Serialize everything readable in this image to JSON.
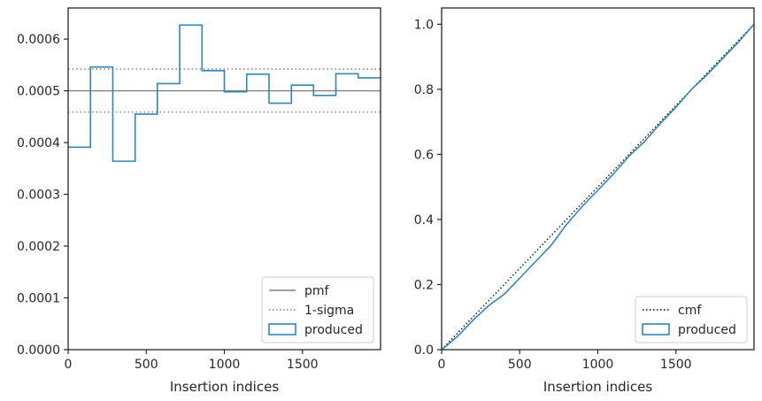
{
  "chart_data": [
    {
      "type": "line",
      "xlabel": "Insertion indices",
      "ylabel": "",
      "xlim": [
        0,
        2000
      ],
      "ylim": [
        0,
        0.00066
      ],
      "xticks": [
        0,
        500,
        1000,
        1500
      ],
      "xtick_labels": [
        "0",
        "500",
        "1000",
        "1500"
      ],
      "yticks": [
        0,
        0.0001,
        0.0002,
        0.0003,
        0.0004,
        0.0005,
        0.0006
      ],
      "ytick_labels": [
        "0.0000",
        "0.0001",
        "0.0002",
        "0.0003",
        "0.0004",
        "0.0005",
        "0.0006"
      ],
      "grid": false,
      "legend_position": "bottom-right",
      "reference_lines": [
        {
          "name": "pmf",
          "y": 0.0005,
          "color": "#808080",
          "style": "solid"
        },
        {
          "name": "1-sigma",
          "y": 0.000542,
          "color": "#808080",
          "style": "dotted"
        },
        {
          "name": "1-sigma",
          "y": 0.000459,
          "color": "#808080",
          "style": "dotted"
        }
      ],
      "series": [
        {
          "name": "produced",
          "kind": "step-histogram",
          "color": "#2e86c1",
          "bin_edges": [
            0,
            143,
            286,
            429,
            571,
            714,
            857,
            1000,
            1143,
            1286,
            1429,
            1571,
            1714,
            1857,
            2000
          ],
          "values": [
            0.000391,
            0.000546,
            0.000364,
            0.000455,
            0.000514,
            0.000627,
            0.000539,
            0.000498,
            0.000532,
            0.000476,
            0.000511,
            0.000491,
            0.000533,
            0.000525
          ]
        }
      ],
      "legend": [
        "pmf",
        "1-sigma",
        "produced"
      ]
    },
    {
      "type": "line",
      "xlabel": "Insertion indices",
      "ylabel": "",
      "xlim": [
        0,
        2000
      ],
      "ylim": [
        0,
        1.05
      ],
      "xticks": [
        0,
        500,
        1000,
        1500
      ],
      "xtick_labels": [
        "0",
        "500",
        "1000",
        "1500"
      ],
      "yticks": [
        0,
        0.2,
        0.4,
        0.6,
        0.8,
        1.0
      ],
      "ytick_labels": [
        "0.0",
        "0.2",
        "0.4",
        "0.6",
        "0.8",
        "1.0"
      ],
      "grid": false,
      "legend_position": "bottom-right",
      "series": [
        {
          "name": "cmf",
          "color": "#000000",
          "style": "dotted",
          "x": [
            0,
            2000
          ],
          "y": [
            0,
            1.0
          ]
        },
        {
          "name": "produced",
          "color": "#2e86c1",
          "style": "solid",
          "x": [
            0,
            100,
            200,
            300,
            400,
            500,
            600,
            700,
            800,
            900,
            1000,
            1100,
            1200,
            1300,
            1400,
            1500,
            1600,
            1700,
            1800,
            1900,
            2000
          ],
          "y": [
            0,
            0.04,
            0.09,
            0.135,
            0.17,
            0.22,
            0.27,
            0.32,
            0.385,
            0.44,
            0.49,
            0.54,
            0.595,
            0.64,
            0.695,
            0.745,
            0.8,
            0.845,
            0.895,
            0.945,
            1.0
          ]
        }
      ],
      "legend": [
        "cmf",
        "produced"
      ]
    }
  ]
}
